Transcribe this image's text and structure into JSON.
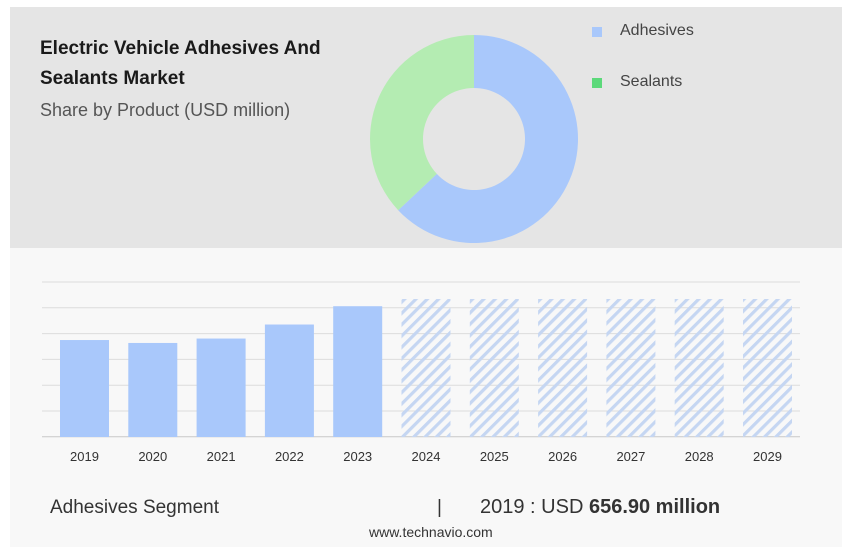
{
  "header": {
    "title_line1": "Electric Vehicle Adhesives And",
    "title_line2": "Sealants Market",
    "subtitle": "Share by Product (USD million)"
  },
  "colors": {
    "adhesives": "#a9c8fb",
    "sealants": "#b4ecb2",
    "legend_sealants": "#5cd97a",
    "forecast_hatch": "#c5d6f2",
    "grid": "#dcdcdc"
  },
  "chart_data": [
    {
      "type": "pie",
      "variant": "donut",
      "slices": [
        {
          "name": "Adhesives",
          "value": 63
        },
        {
          "name": "Sealants",
          "value": 37
        }
      ],
      "legend": [
        "Adhesives",
        "Sealants"
      ],
      "legend_position": "right"
    },
    {
      "type": "bar",
      "categories": [
        "2019",
        "2020",
        "2021",
        "2022",
        "2023",
        "2024",
        "2025",
        "2026",
        "2027",
        "2028",
        "2029"
      ],
      "values": [
        656.9,
        637.0,
        667.0,
        762.0,
        886.0,
        null,
        null,
        null,
        null,
        null,
        null
      ],
      "forecast_categories": [
        "2024",
        "2025",
        "2026",
        "2027",
        "2028",
        "2029"
      ],
      "forecast_style": "hatched",
      "ylim": [
        0,
        1050
      ],
      "grid": true
    }
  ],
  "footer": {
    "segment": "Adhesives Segment",
    "divider": "|",
    "value_prefix": "2019 : USD ",
    "value_bold": "656.90 million",
    "source": "www.technavio.com"
  }
}
